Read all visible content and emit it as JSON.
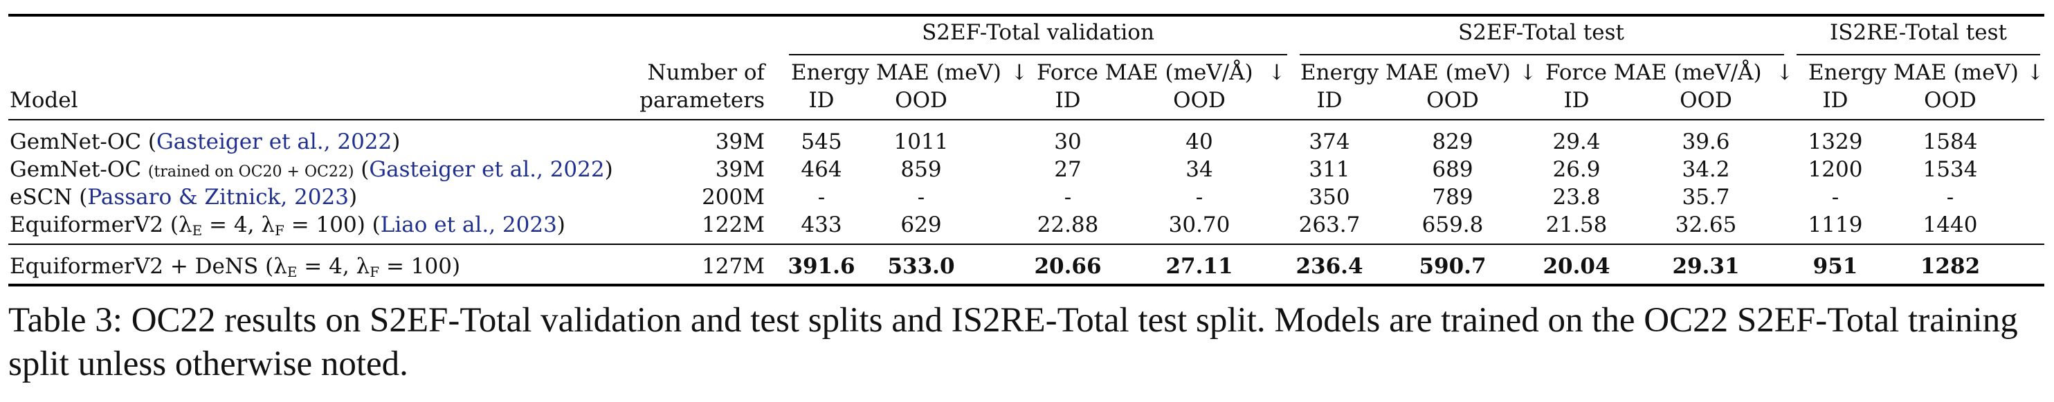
{
  "header": {
    "groups": [
      "S2EF-Total validation",
      "S2EF-Total test",
      "IS2RE-Total test"
    ],
    "model_label": "Model",
    "params_label_line1": "Number of",
    "params_label_line2": "parameters",
    "energy_mae": "Energy MAE (meV)",
    "force_mae": "Force MAE (meV/Å)",
    "arrow": "↓",
    "id": "ID",
    "ood": "OOD"
  },
  "rows": [
    {
      "model_plain": "GemNet-OC (",
      "model_note": "",
      "model_cite": "Gasteiger et al., 2022",
      "model_tail": ")",
      "params": "39M",
      "values": [
        "545",
        "1011",
        "30",
        "40",
        "374",
        "829",
        "29.4",
        "39.6",
        "1329",
        "1584"
      ]
    },
    {
      "model_plain": "GemNet-OC ",
      "model_note": "(trained on OC20 + OC22)",
      "model_cite": "Gasteiger et al., 2022",
      "model_tail": ")",
      "params": "39M",
      "values": [
        "464",
        "859",
        "27",
        "34",
        "311",
        "689",
        "26.9",
        "34.2",
        "1200",
        "1534"
      ]
    },
    {
      "model_plain": "eSCN (",
      "model_note": "",
      "model_cite": "Passaro & Zitnick, 2023",
      "model_tail": ")",
      "params": "200M",
      "values": [
        "-",
        "-",
        "-",
        "-",
        "350",
        "789",
        "23.8",
        "35.7",
        "-",
        "-"
      ]
    },
    {
      "model_plain": "EquiformerV2 (λE = 4, λF = 100) (",
      "model_note": "",
      "model_cite": "Liao et al., 2023",
      "model_tail": ")",
      "params": "122M",
      "values": [
        "433",
        "629",
        "22.88",
        "30.70",
        "263.7",
        "659.8",
        "21.58",
        "32.65",
        "1119",
        "1440"
      ]
    }
  ],
  "final_row": {
    "model": "EquiformerV2 + DeNS (λE = 4, λF = 100)",
    "params": "127M",
    "values": [
      "391.6",
      "533.0",
      "20.66",
      "27.11",
      "236.4",
      "590.7",
      "20.04",
      "29.31",
      "951",
      "1282"
    ]
  },
  "caption": "Table 3: OC22 results on S2EF-Total validation and test splits and IS2RE-Total test split. Models are trained on the OC22 S2EF-Total training split unless otherwise noted."
}
